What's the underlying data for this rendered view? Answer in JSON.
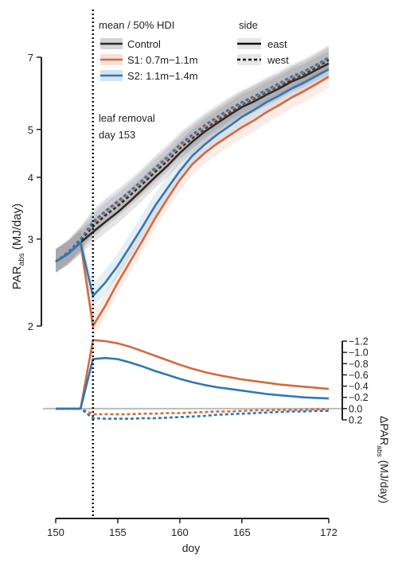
{
  "chart_data": [
    {
      "type": "line",
      "ylabel_main": "PAR",
      "ylabel_sub": "abs",
      "ylabel_unit": "(MJ/day)",
      "ylim": [
        2,
        7
      ],
      "yticks": [
        2,
        3,
        4,
        5,
        7
      ],
      "y_scale": "log",
      "xlim": [
        150,
        172
      ],
      "legend": {
        "title": "mean / 50% HDI",
        "side_title": "side",
        "side_entries": [
          "east",
          "west"
        ]
      },
      "annotation": {
        "line1": "leaf removal",
        "line2": "day 153",
        "x": 153
      },
      "series": [
        {
          "name": "Control",
          "color": "#2b2b2b",
          "east": {
            "x": [
              150,
              151,
              152,
              153,
              154,
              155,
              156,
              157,
              158,
              159,
              160,
              161,
              162,
              163,
              164,
              165,
              166,
              167,
              168,
              169,
              170,
              171,
              172
            ],
            "y": [
              2.7,
              2.8,
              2.95,
              3.1,
              3.25,
              3.4,
              3.58,
              3.78,
              4.0,
              4.22,
              4.48,
              4.72,
              4.95,
              5.15,
              5.35,
              5.55,
              5.7,
              5.88,
              6.05,
              6.25,
              6.4,
              6.6,
              6.8
            ]
          },
          "west": {
            "x": [
              150,
              151,
              152,
              153,
              154,
              155,
              156,
              157,
              158,
              159,
              160,
              161,
              162,
              163,
              164,
              165,
              166,
              167,
              168,
              169,
              170,
              171,
              172
            ],
            "y": [
              2.7,
              2.82,
              2.98,
              3.18,
              3.35,
              3.5,
              3.68,
              3.88,
              4.1,
              4.32,
              4.58,
              4.8,
              5.02,
              5.22,
              5.42,
              5.62,
              5.78,
              5.96,
              6.12,
              6.32,
              6.48,
              6.68,
              6.92
            ]
          }
        },
        {
          "name": "S1: 0.7m−1.1m",
          "color": "#d26a40",
          "east": {
            "x": [
              150,
              151,
              152,
              153,
              154,
              155,
              156,
              157,
              158,
              159,
              160,
              161,
              162,
              163,
              164,
              165,
              166,
              167,
              168,
              169,
              170,
              171,
              172
            ],
            "y": [
              2.7,
              2.8,
              2.95,
              2.0,
              2.2,
              2.45,
              2.7,
              2.98,
              3.3,
              3.62,
              3.95,
              4.25,
              4.48,
              4.68,
              4.86,
              5.05,
              5.22,
              5.42,
              5.6,
              5.8,
              5.98,
              6.18,
              6.4
            ]
          },
          "west": {
            "x": [
              150,
              151,
              152,
              153,
              154,
              155,
              156,
              157,
              158,
              159,
              160,
              161,
              162,
              163,
              164,
              165,
              166,
              167,
              168,
              169,
              170,
              171,
              172
            ],
            "y": [
              2.7,
              2.82,
              3.0,
              3.22,
              3.4,
              3.55,
              3.72,
              3.92,
              4.15,
              4.36,
              4.62,
              4.84,
              5.05,
              5.25,
              5.45,
              5.64,
              5.8,
              5.98,
              6.15,
              6.35,
              6.52,
              6.72,
              6.98
            ]
          }
        },
        {
          "name": "S2: 1.1m−1.4m",
          "color": "#2f78b4",
          "east": {
            "x": [
              150,
              151,
              152,
              153,
              154,
              155,
              156,
              157,
              158,
              159,
              160,
              161,
              162,
              163,
              164,
              165,
              166,
              167,
              168,
              169,
              170,
              171,
              172
            ],
            "y": [
              2.7,
              2.8,
              2.95,
              2.3,
              2.45,
              2.65,
              2.9,
              3.18,
              3.5,
              3.8,
              4.12,
              4.42,
              4.66,
              4.88,
              5.08,
              5.3,
              5.48,
              5.68,
              5.85,
              6.05,
              6.22,
              6.42,
              6.62
            ]
          },
          "west": {
            "x": [
              150,
              151,
              152,
              153,
              154,
              155,
              156,
              157,
              158,
              159,
              160,
              161,
              162,
              163,
              164,
              165,
              166,
              167,
              168,
              169,
              170,
              171,
              172
            ],
            "y": [
              2.7,
              2.82,
              3.0,
              3.25,
              3.42,
              3.58,
              3.75,
              3.95,
              4.18,
              4.4,
              4.66,
              4.88,
              5.1,
              5.3,
              5.5,
              5.68,
              5.84,
              6.02,
              6.2,
              6.4,
              6.56,
              6.76,
              7.0
            ]
          }
        }
      ]
    },
    {
      "type": "line",
      "ylabel_main": "ΔPAR",
      "ylabel_sub": "abs",
      "ylabel_unit": "(MJ/day)",
      "ylim": [
        -1.2,
        0.2
      ],
      "yticks": [
        "0.2",
        "0.0",
        "−0.2",
        "−0.4",
        "−0.6",
        "−0.8",
        "−1.0",
        "−1.2"
      ],
      "ytick_values": [
        0.2,
        0.0,
        -0.2,
        -0.4,
        -0.6,
        -0.8,
        -1.0,
        -1.2
      ],
      "xlim": [
        150,
        172
      ],
      "xticks": [
        150,
        155,
        160,
        165,
        172
      ],
      "xlabel": "doy",
      "series": [
        {
          "name": "S1: 0.7m−1.1m",
          "color": "#d26a40",
          "east": {
            "x": [
              150,
              151,
              152,
              153,
              154,
              155,
              156,
              157,
              158,
              159,
              160,
              161,
              162,
              163,
              164,
              165,
              166,
              167,
              168,
              169,
              170,
              171,
              172
            ],
            "y": [
              0,
              0,
              0,
              -1.22,
              -1.2,
              -1.16,
              -1.1,
              -1.02,
              -0.94,
              -0.86,
              -0.78,
              -0.71,
              -0.65,
              -0.6,
              -0.56,
              -0.52,
              -0.49,
              -0.46,
              -0.43,
              -0.41,
              -0.39,
              -0.37,
              -0.35
            ]
          },
          "west": {
            "x": [
              150,
              151,
              152,
              153,
              154,
              155,
              156,
              157,
              158,
              159,
              160,
              161,
              162,
              163,
              164,
              165,
              166,
              167,
              168,
              169,
              170,
              171,
              172
            ],
            "y": [
              0,
              0,
              0,
              0.1,
              0.1,
              0.1,
              0.1,
              0.09,
              0.09,
              0.08,
              0.08,
              0.07,
              0.06,
              0.05,
              0.05,
              0.04,
              0.03,
              0.03,
              0.02,
              0.02,
              0.02,
              0.01,
              0.01
            ]
          }
        },
        {
          "name": "S2: 1.1m−1.4m",
          "color": "#2f78b4",
          "east": {
            "x": [
              150,
              151,
              152,
              153,
              154,
              155,
              156,
              157,
              158,
              159,
              160,
              161,
              162,
              163,
              164,
              165,
              166,
              167,
              168,
              169,
              170,
              171,
              172
            ],
            "y": [
              0,
              0,
              0,
              -0.88,
              -0.9,
              -0.88,
              -0.82,
              -0.75,
              -0.67,
              -0.6,
              -0.53,
              -0.47,
              -0.42,
              -0.38,
              -0.35,
              -0.32,
              -0.29,
              -0.26,
              -0.24,
              -0.22,
              -0.2,
              -0.19,
              -0.18
            ]
          },
          "west": {
            "x": [
              150,
              151,
              152,
              153,
              154,
              155,
              156,
              157,
              158,
              159,
              160,
              161,
              162,
              163,
              164,
              165,
              166,
              167,
              168,
              169,
              170,
              171,
              172
            ],
            "y": [
              0,
              0,
              0,
              0.17,
              0.18,
              0.18,
              0.18,
              0.17,
              0.17,
              0.16,
              0.15,
              0.14,
              0.13,
              0.11,
              0.1,
              0.09,
              0.08,
              0.07,
              0.06,
              0.05,
              0.05,
              0.04,
              0.04
            ]
          }
        }
      ]
    }
  ]
}
